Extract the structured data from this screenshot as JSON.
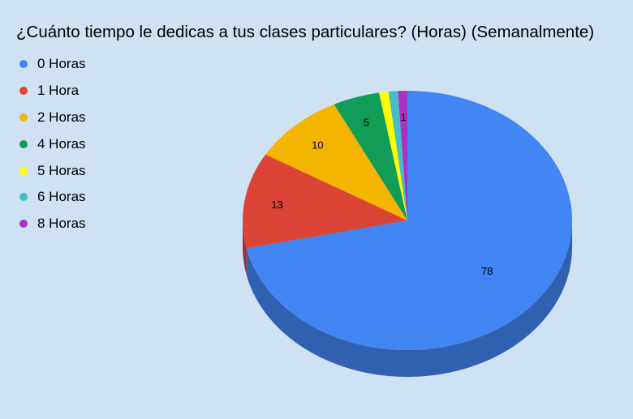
{
  "chart_data": {
    "type": "pie",
    "title": "¿Cuánto tiempo le dedicas a tus clases particulares? (Horas) (Semanalmente)",
    "legend_position": "left",
    "style": "3d",
    "slices": [
      {
        "label": "0 Horas",
        "value": 78,
        "color": "#4285f4",
        "shown_label": "78"
      },
      {
        "label": "1 Hora",
        "value": 13,
        "color": "#db4437",
        "shown_label": "13"
      },
      {
        "label": "2 Horas",
        "value": 10,
        "color": "#f4b400",
        "shown_label": "10"
      },
      {
        "label": "4 Horas",
        "value": 5,
        "color": "#0f9d58",
        "shown_label": "5"
      },
      {
        "label": "5 Horas",
        "value": 1,
        "color": "#ffff00",
        "shown_label": ""
      },
      {
        "label": "6 Horas",
        "value": 1,
        "color": "#46bdc6",
        "shown_label": ""
      },
      {
        "label": "8 Horas",
        "value": 1,
        "color": "#ab30c4",
        "shown_label": "1"
      }
    ]
  }
}
